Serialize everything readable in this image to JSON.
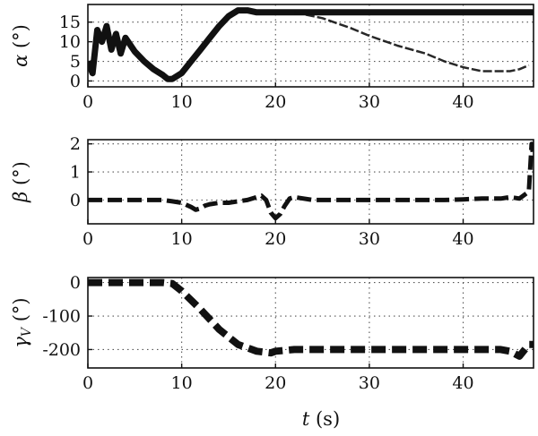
{
  "chart_data": [
    {
      "type": "line",
      "panel": "top",
      "ylabel_symbol": "α",
      "ylabel_unit": " (°)",
      "xlim": [
        0,
        47.5
      ],
      "ylim": [
        -1.5,
        19.5
      ],
      "x_ticks": [
        0,
        10,
        20,
        30,
        40
      ],
      "y_ticks": [
        0,
        5,
        10,
        15
      ],
      "grid": true,
      "series": [
        {
          "style": "thick-solid",
          "x": [
            0,
            0.5,
            1,
            1.5,
            2,
            2.5,
            3,
            3.5,
            4,
            5,
            6,
            7,
            8,
            8.5,
            9,
            10,
            11,
            12,
            13,
            14,
            15,
            16,
            17,
            18,
            20,
            25,
            30,
            35,
            40,
            45,
            47.5
          ],
          "y": [
            5,
            2,
            13,
            10,
            14,
            8,
            12,
            7,
            11,
            7.5,
            5,
            3,
            1.5,
            0.5,
            0.5,
            2,
            5,
            8,
            11,
            14,
            16.5,
            18,
            18,
            17.5,
            17.5,
            17.5,
            17.5,
            17.5,
            17.5,
            17.5,
            17.5
          ]
        },
        {
          "style": "envelope-lower",
          "x": [
            22,
            25,
            28,
            30,
            33,
            36,
            38,
            40,
            42,
            44,
            45,
            46,
            47
          ],
          "y": [
            17.5,
            16,
            13.5,
            11.5,
            9,
            7,
            5,
            3.5,
            2.5,
            2.5,
            2.5,
            3,
            4
          ]
        }
      ]
    },
    {
      "type": "line",
      "panel": "middle",
      "ylabel_symbol": "β",
      "ylabel_unit": " (°)",
      "xlim": [
        0,
        47.5
      ],
      "ylim": [
        -0.85,
        2.15
      ],
      "x_ticks": [
        0,
        10,
        20,
        30,
        40
      ],
      "y_ticks": [
        0,
        1,
        2
      ],
      "grid": true,
      "series": [
        {
          "style": "dashed",
          "x": [
            0,
            2,
            4,
            6,
            8,
            9,
            10,
            11,
            11.5,
            12,
            12.5,
            13,
            14,
            15,
            16,
            17,
            18,
            18.5,
            19,
            19.5,
            20,
            20.5,
            21,
            21.5,
            22,
            23,
            24,
            26,
            30,
            35,
            38,
            40,
            42,
            44,
            45,
            46,
            47,
            47.3,
            47.5
          ],
          "y": [
            0,
            0,
            0,
            0,
            0,
            -0.05,
            -0.1,
            -0.25,
            -0.35,
            -0.3,
            -0.2,
            -0.15,
            -0.1,
            -0.1,
            -0.05,
            0.0,
            0.1,
            0.15,
            0.0,
            -0.45,
            -0.65,
            -0.5,
            -0.2,
            0.05,
            0.1,
            0.05,
            0.0,
            0.0,
            0.0,
            0.0,
            0.0,
            0.02,
            0.05,
            0.05,
            0.1,
            0.05,
            0.3,
            2.0,
            1.5
          ]
        }
      ]
    },
    {
      "type": "line",
      "panel": "bottom",
      "ylabel_symbol": "γ",
      "ylabel_sub": "V",
      "ylabel_unit": " (°)",
      "xlabel_symbol": "t",
      "xlabel_unit": " (s)",
      "xlim": [
        0,
        47.5
      ],
      "ylim": [
        -255,
        15
      ],
      "x_ticks": [
        0,
        10,
        20,
        30,
        40
      ],
      "y_ticks": [
        0,
        -100,
        -200
      ],
      "grid": true,
      "series": [
        {
          "style": "thick-dashed",
          "x": [
            0,
            4,
            8,
            9,
            10,
            12,
            14,
            16,
            18,
            19.5,
            20,
            22,
            26,
            30,
            35,
            40,
            44,
            45,
            46,
            47,
            47.5
          ],
          "y": [
            0,
            0,
            0,
            -3,
            -25,
            -80,
            -140,
            -185,
            -205,
            -210,
            -205,
            -200,
            -200,
            -200,
            -200,
            -200,
            -200,
            -205,
            -220,
            -185,
            -185
          ]
        }
      ]
    }
  ]
}
